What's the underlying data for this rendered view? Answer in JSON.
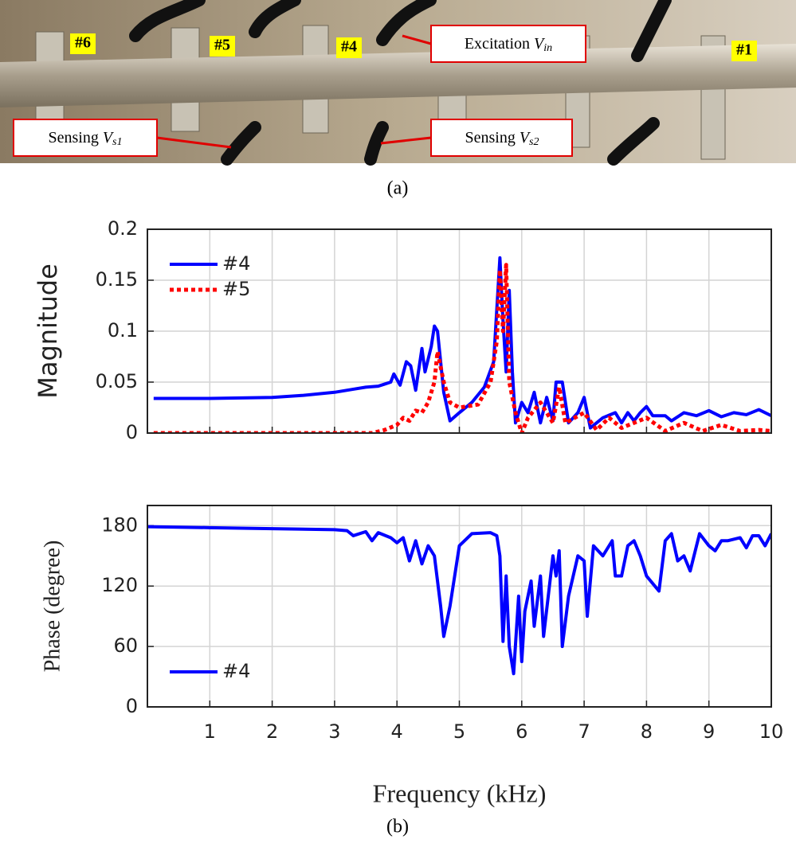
{
  "photo": {
    "electrodes": [
      "#6",
      "#5",
      "#4",
      "#1"
    ],
    "callouts": [
      {
        "text": "Excitation",
        "var": "V",
        "sub": "in"
      },
      {
        "text": "Sensing",
        "var": "V",
        "sub": "s1"
      },
      {
        "text": "Sensing",
        "var": "V",
        "sub": "s2"
      }
    ],
    "caption": "(a)"
  },
  "caption": "(b)",
  "chart_data": [
    {
      "type": "line",
      "ylabel": "Magnitude",
      "xlim": [
        0,
        10
      ],
      "ylim": [
        0,
        0.2
      ],
      "xticks": [
        1,
        2,
        3,
        4,
        5,
        6,
        7,
        8,
        9,
        10
      ],
      "yticks": [
        0,
        0.05,
        0.1,
        0.15,
        0.2
      ],
      "show_xticklabels": false,
      "grid": true,
      "legend": "upper left",
      "series": [
        {
          "name": "#4",
          "color": "#0000ff",
          "line_style": "solid",
          "x": [
            0.1,
            1,
            2,
            2.5,
            3,
            3.3,
            3.5,
            3.7,
            3.8,
            3.9,
            3.95,
            4.05,
            4.15,
            4.22,
            4.3,
            4.4,
            4.45,
            4.55,
            4.6,
            4.65,
            4.75,
            4.85,
            5.0,
            5.2,
            5.4,
            5.55,
            5.65,
            5.7,
            5.75,
            5.8,
            5.85,
            5.9,
            6.0,
            6.1,
            6.2,
            6.3,
            6.4,
            6.5,
            6.55,
            6.65,
            6.75,
            6.9,
            7.0,
            7.1,
            7.3,
            7.5,
            7.6,
            7.7,
            7.8,
            7.9,
            8.0,
            8.1,
            8.3,
            8.4,
            8.6,
            8.8,
            9.0,
            9.2,
            9.4,
            9.6,
            9.8,
            10
          ],
          "values": [
            0.034,
            0.034,
            0.035,
            0.037,
            0.04,
            0.043,
            0.045,
            0.046,
            0.048,
            0.05,
            0.058,
            0.047,
            0.07,
            0.066,
            0.042,
            0.083,
            0.06,
            0.085,
            0.105,
            0.1,
            0.04,
            0.012,
            0.02,
            0.03,
            0.045,
            0.07,
            0.172,
            0.11,
            0.06,
            0.14,
            0.06,
            0.01,
            0.03,
            0.02,
            0.04,
            0.01,
            0.035,
            0.012,
            0.05,
            0.05,
            0.01,
            0.02,
            0.035,
            0.005,
            0.015,
            0.02,
            0.01,
            0.02,
            0.012,
            0.02,
            0.026,
            0.017,
            0.017,
            0.012,
            0.02,
            0.017,
            0.022,
            0.016,
            0.02,
            0.018,
            0.023,
            0.017
          ]
        },
        {
          "name": "#5",
          "color": "#ff0000",
          "line_style": "dotted",
          "x": [
            0.1,
            3.6,
            3.8,
            4.0,
            4.1,
            4.2,
            4.3,
            4.4,
            4.5,
            4.6,
            4.65,
            4.75,
            4.85,
            5.0,
            5.3,
            5.5,
            5.6,
            5.65,
            5.7,
            5.75,
            5.8,
            5.9,
            6.0,
            6.1,
            6.3,
            6.5,
            6.6,
            6.7,
            7.0,
            7.2,
            7.4,
            7.6,
            7.8,
            8.0,
            8.3,
            8.6,
            8.9,
            9.2,
            9.5,
            9.8,
            10
          ],
          "values": [
            0,
            0,
            0.003,
            0.008,
            0.015,
            0.012,
            0.022,
            0.02,
            0.03,
            0.05,
            0.08,
            0.05,
            0.03,
            0.025,
            0.028,
            0.05,
            0.09,
            0.16,
            0.1,
            0.165,
            0.05,
            0.02,
            0,
            0.015,
            0.03,
            0.01,
            0.045,
            0.01,
            0.02,
            0.003,
            0.015,
            0.005,
            0.01,
            0.015,
            0.002,
            0.01,
            0.002,
            0.008,
            0.002,
            0.003,
            0.002
          ]
        }
      ]
    },
    {
      "type": "line",
      "ylabel": "Phase (degree)",
      "xlabel": "Frequency (kHz)",
      "xlim": [
        0,
        10
      ],
      "ylim": [
        0,
        200
      ],
      "xticks": [
        1,
        2,
        3,
        4,
        5,
        6,
        7,
        8,
        9,
        10
      ],
      "yticks": [
        0,
        60,
        120,
        180
      ],
      "show_xticklabels": true,
      "grid": true,
      "legend": "lower left",
      "series": [
        {
          "name": "#4",
          "color": "#0000ff",
          "line_style": "solid",
          "x": [
            0,
            1,
            2,
            3,
            3.2,
            3.3,
            3.5,
            3.6,
            3.7,
            3.9,
            4.0,
            4.1,
            4.2,
            4.3,
            4.4,
            4.5,
            4.6,
            4.7,
            4.75,
            4.85,
            5.0,
            5.2,
            5.5,
            5.6,
            5.65,
            5.7,
            5.75,
            5.8,
            5.87,
            5.95,
            6.0,
            6.05,
            6.15,
            6.2,
            6.3,
            6.35,
            6.5,
            6.55,
            6.6,
            6.65,
            6.75,
            6.9,
            7.0,
            7.05,
            7.15,
            7.3,
            7.45,
            7.5,
            7.6,
            7.7,
            7.8,
            7.9,
            8.0,
            8.2,
            8.3,
            8.4,
            8.5,
            8.6,
            8.7,
            8.85,
            9.0,
            9.1,
            9.2,
            9.3,
            9.5,
            9.6,
            9.7,
            9.8,
            9.9,
            10
          ],
          "values": [
            179,
            178,
            177,
            176,
            175,
            170,
            174,
            165,
            173,
            168,
            163,
            168,
            145,
            165,
            142,
            160,
            150,
            100,
            70,
            100,
            160,
            172,
            173,
            170,
            150,
            65,
            130,
            60,
            33,
            110,
            45,
            95,
            125,
            80,
            130,
            70,
            150,
            130,
            155,
            60,
            110,
            150,
            145,
            90,
            160,
            150,
            165,
            130,
            130,
            160,
            165,
            150,
            130,
            115,
            165,
            172,
            145,
            150,
            135,
            172,
            160,
            155,
            165,
            165,
            168,
            158,
            170,
            170,
            160,
            172
          ]
        }
      ]
    }
  ]
}
